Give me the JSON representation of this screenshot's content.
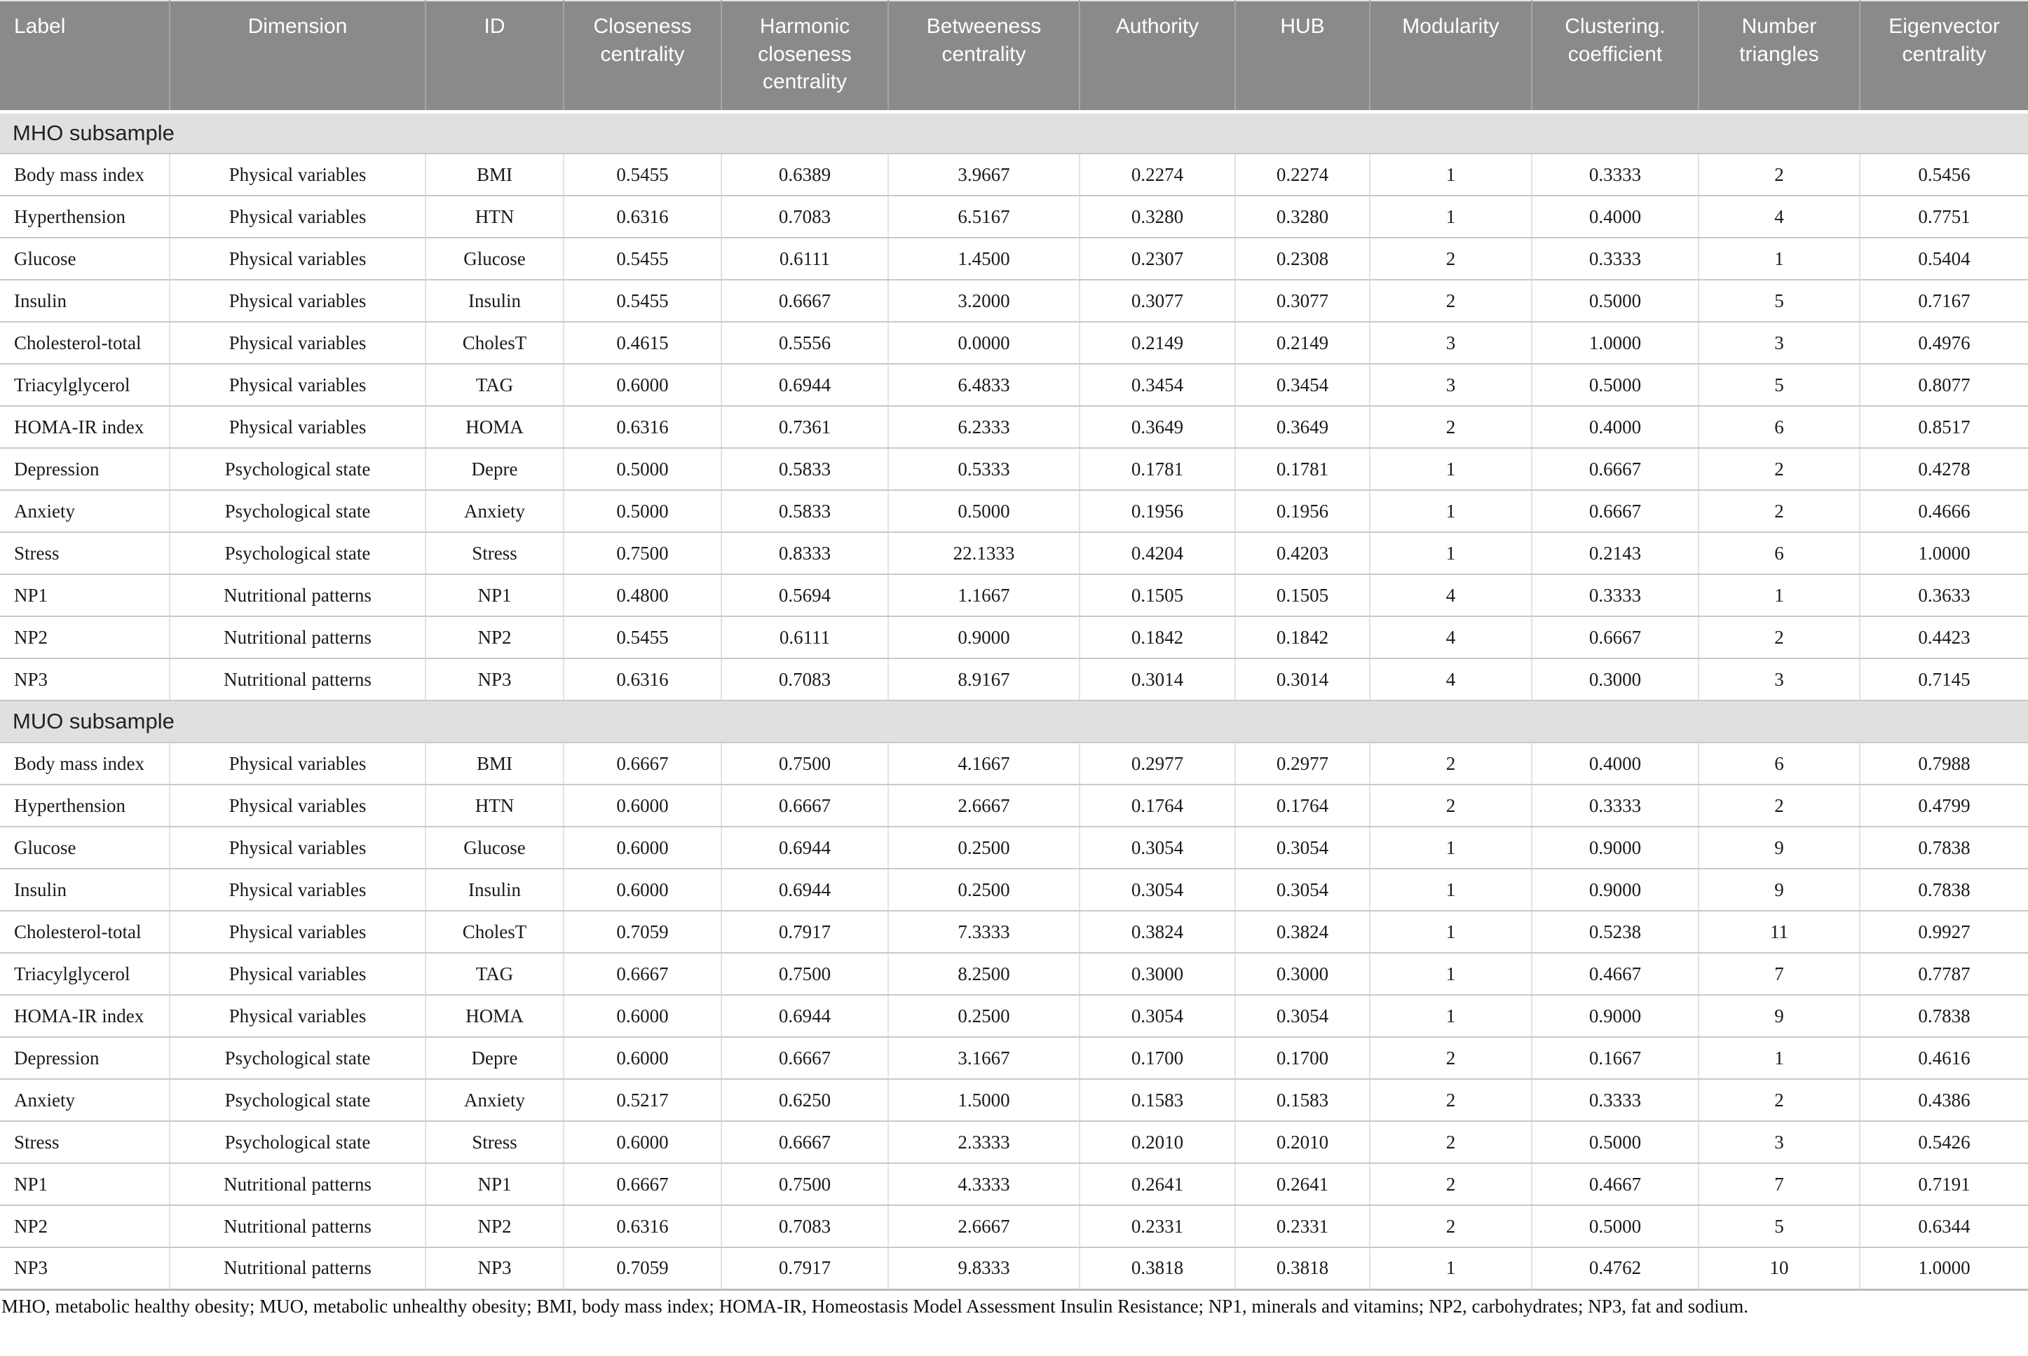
{
  "table": {
    "columns": [
      "Label",
      "Dimension",
      "ID",
      "Closeness centrality",
      "Harmonic closeness centrality",
      "Betweeness centrality",
      "Authority",
      "HUB",
      "Modularity",
      "Clustering. coefficient",
      "Number triangles",
      "Eigenvector centrality"
    ],
    "sections": [
      {
        "title": "MHO subsample",
        "rows": [
          [
            "Body mass index",
            "Physical variables",
            "BMI",
            "0.5455",
            "0.6389",
            "3.9667",
            "0.2274",
            "0.2274",
            "1",
            "0.3333",
            "2",
            "0.5456"
          ],
          [
            "Hyperthension",
            "Physical variables",
            "HTN",
            "0.6316",
            "0.7083",
            "6.5167",
            "0.3280",
            "0.3280",
            "1",
            "0.4000",
            "4",
            "0.7751"
          ],
          [
            "Glucose",
            "Physical variables",
            "Glucose",
            "0.5455",
            "0.6111",
            "1.4500",
            "0.2307",
            "0.2308",
            "2",
            "0.3333",
            "1",
            "0.5404"
          ],
          [
            "Insulin",
            "Physical variables",
            "Insulin",
            "0.5455",
            "0.6667",
            "3.2000",
            "0.3077",
            "0.3077",
            "2",
            "0.5000",
            "5",
            "0.7167"
          ],
          [
            "Cholesterol-total",
            "Physical variables",
            "CholesT",
            "0.4615",
            "0.5556",
            "0.0000",
            "0.2149",
            "0.2149",
            "3",
            "1.0000",
            "3",
            "0.4976"
          ],
          [
            "Triacylglycerol",
            "Physical variables",
            "TAG",
            "0.6000",
            "0.6944",
            "6.4833",
            "0.3454",
            "0.3454",
            "3",
            "0.5000",
            "5",
            "0.8077"
          ],
          [
            "HOMA-IR index",
            "Physical variables",
            "HOMA",
            "0.6316",
            "0.7361",
            "6.2333",
            "0.3649",
            "0.3649",
            "2",
            "0.4000",
            "6",
            "0.8517"
          ],
          [
            "Depression",
            "Psychological state",
            "Depre",
            "0.5000",
            "0.5833",
            "0.5333",
            "0.1781",
            "0.1781",
            "1",
            "0.6667",
            "2",
            "0.4278"
          ],
          [
            "Anxiety",
            "Psychological state",
            "Anxiety",
            "0.5000",
            "0.5833",
            "0.5000",
            "0.1956",
            "0.1956",
            "1",
            "0.6667",
            "2",
            "0.4666"
          ],
          [
            "Stress",
            "Psychological state",
            "Stress",
            "0.7500",
            "0.8333",
            "22.1333",
            "0.4204",
            "0.4203",
            "1",
            "0.2143",
            "6",
            "1.0000"
          ],
          [
            "NP1",
            "Nutritional patterns",
            "NP1",
            "0.4800",
            "0.5694",
            "1.1667",
            "0.1505",
            "0.1505",
            "4",
            "0.3333",
            "1",
            "0.3633"
          ],
          [
            "NP2",
            "Nutritional patterns",
            "NP2",
            "0.5455",
            "0.6111",
            "0.9000",
            "0.1842",
            "0.1842",
            "4",
            "0.6667",
            "2",
            "0.4423"
          ],
          [
            "NP3",
            "Nutritional patterns",
            "NP3",
            "0.6316",
            "0.7083",
            "8.9167",
            "0.3014",
            "0.3014",
            "4",
            "0.3000",
            "3",
            "0.7145"
          ]
        ]
      },
      {
        "title": "MUO subsample",
        "rows": [
          [
            "Body mass index",
            "Physical variables",
            "BMI",
            "0.6667",
            "0.7500",
            "4.1667",
            "0.2977",
            "0.2977",
            "2",
            "0.4000",
            "6",
            "0.7988"
          ],
          [
            "Hyperthension",
            "Physical variables",
            "HTN",
            "0.6000",
            "0.6667",
            "2.6667",
            "0.1764",
            "0.1764",
            "2",
            "0.3333",
            "2",
            "0.4799"
          ],
          [
            "Glucose",
            "Physical variables",
            "Glucose",
            "0.6000",
            "0.6944",
            "0.2500",
            "0.3054",
            "0.3054",
            "1",
            "0.9000",
            "9",
            "0.7838"
          ],
          [
            "Insulin",
            "Physical variables",
            "Insulin",
            "0.6000",
            "0.6944",
            "0.2500",
            "0.3054",
            "0.3054",
            "1",
            "0.9000",
            "9",
            "0.7838"
          ],
          [
            "Cholesterol-total",
            "Physical variables",
            "CholesT",
            "0.7059",
            "0.7917",
            "7.3333",
            "0.3824",
            "0.3824",
            "1",
            "0.5238",
            "11",
            "0.9927"
          ],
          [
            "Triacylglycerol",
            "Physical variables",
            "TAG",
            "0.6667",
            "0.7500",
            "8.2500",
            "0.3000",
            "0.3000",
            "1",
            "0.4667",
            "7",
            "0.7787"
          ],
          [
            "HOMA-IR index",
            "Physical variables",
            "HOMA",
            "0.6000",
            "0.6944",
            "0.2500",
            "0.3054",
            "0.3054",
            "1",
            "0.9000",
            "9",
            "0.7838"
          ],
          [
            "Depression",
            "Psychological state",
            "Depre",
            "0.6000",
            "0.6667",
            "3.1667",
            "0.1700",
            "0.1700",
            "2",
            "0.1667",
            "1",
            "0.4616"
          ],
          [
            "Anxiety",
            "Psychological state",
            "Anxiety",
            "0.5217",
            "0.6250",
            "1.5000",
            "0.1583",
            "0.1583",
            "2",
            "0.3333",
            "2",
            "0.4386"
          ],
          [
            "Stress",
            "Psychological state",
            "Stress",
            "0.6000",
            "0.6667",
            "2.3333",
            "0.2010",
            "0.2010",
            "2",
            "0.5000",
            "3",
            "0.5426"
          ],
          [
            "NP1",
            "Nutritional patterns",
            "NP1",
            "0.6667",
            "0.7500",
            "4.3333",
            "0.2641",
            "0.2641",
            "2",
            "0.4667",
            "7",
            "0.7191"
          ],
          [
            "NP2",
            "Nutritional patterns",
            "NP2",
            "0.6316",
            "0.7083",
            "2.6667",
            "0.2331",
            "0.2331",
            "2",
            "0.5000",
            "5",
            "0.6344"
          ],
          [
            "NP3",
            "Nutritional patterns",
            "NP3",
            "0.7059",
            "0.7917",
            "9.8333",
            "0.3818",
            "0.3818",
            "1",
            "0.4762",
            "10",
            "1.0000"
          ]
        ]
      }
    ],
    "footnote": "MHO, metabolic healthy obesity; MUO, metabolic unhealthy obesity; BMI, body mass index; HOMA-IR, Homeostasis Model Assessment Insulin Resistance; NP1, minerals and vitamins; NP2, carbohydrates; NP3, fat and sodium.",
    "colors": {
      "header_bg": "#8a8a88",
      "header_text": "#ffffff",
      "section_bg": "#e0e0e0",
      "row_border": "#c9c9c9",
      "column_border": "#e3e3e3",
      "body_text": "#1a1a1a"
    }
  }
}
